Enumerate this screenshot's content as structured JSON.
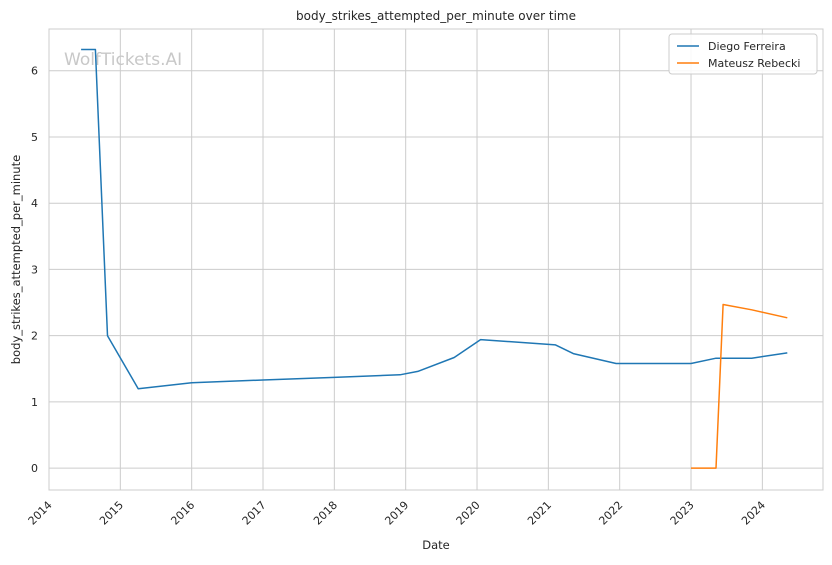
{
  "chart_data": {
    "type": "line",
    "title": "body_strikes_attempted_per_minute over time",
    "xlabel": "Date",
    "ylabel": "body_strikes_attempted_per_minute",
    "watermark": "WolfTickets.AI",
    "xlim": [
      2014.0,
      2024.85
    ],
    "ylim": [
      -0.33,
      6.63
    ],
    "x_ticks": [
      "2014",
      "2015",
      "2016",
      "2017",
      "2018",
      "2019",
      "2020",
      "2021",
      "2022",
      "2023",
      "2024"
    ],
    "y_ticks": [
      "0",
      "1",
      "2",
      "3",
      "4",
      "5",
      "6"
    ],
    "grid": true,
    "legend_position": "top-right",
    "series": [
      {
        "name": "Diego Ferreira",
        "color": "#1f77b4",
        "x": [
          2014.45,
          2014.65,
          2014.82,
          2015.25,
          2016.0,
          2017.0,
          2018.0,
          2018.92,
          2019.17,
          2019.68,
          2020.05,
          2021.1,
          2021.35,
          2021.95,
          2022.5,
          2023.0,
          2023.35,
          2023.85,
          2024.35
        ],
        "y": [
          6.32,
          6.32,
          2.0,
          1.2,
          1.29,
          1.33,
          1.37,
          1.41,
          1.46,
          1.67,
          1.94,
          1.86,
          1.73,
          1.58,
          1.58,
          1.58,
          1.66,
          1.66,
          1.74
        ]
      },
      {
        "name": "Mateusz Rebecki",
        "color": "#ff7f0e",
        "x": [
          2023.0,
          2023.35,
          2023.45,
          2023.85,
          2024.35
        ],
        "y": [
          0.0,
          0.0,
          2.47,
          2.39,
          2.27
        ]
      }
    ]
  }
}
